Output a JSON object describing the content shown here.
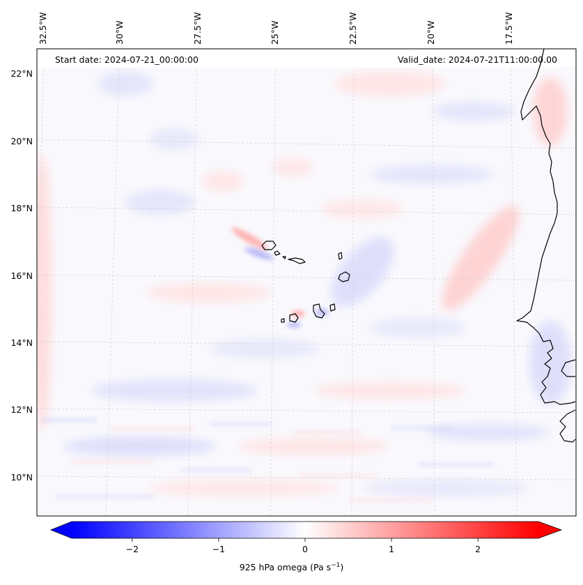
{
  "header": {
    "start_date": "Start date: 2024-07-21_00:00:00",
    "valid_date": "Valid_date: 2024-07-21T11:00:00.00"
  },
  "map": {
    "lon_labels": [
      "32.5°W",
      "30°W",
      "27.5°W",
      "25°W",
      "22.5°W",
      "20°W",
      "17.5°W"
    ],
    "lat_labels": [
      "22°N",
      "20°N",
      "18°N",
      "16°N",
      "14°N",
      "12°N",
      "10°N"
    ],
    "field": "925 hPa omega"
  },
  "colorbar": {
    "label_main": "925 hPa omega (Pa s",
    "label_sup": "−1",
    "label_close": ")",
    "ticks": [
      "−2",
      "−1",
      "0",
      "1",
      "2"
    ],
    "tick_values": [
      -2,
      -1,
      0,
      1,
      2
    ],
    "range": [
      -2.7,
      2.7
    ],
    "colormap": "bwr",
    "colors": {
      "negative": "#0000ff",
      "zero": "#ffffff",
      "positive": "#ff0000"
    }
  }
}
